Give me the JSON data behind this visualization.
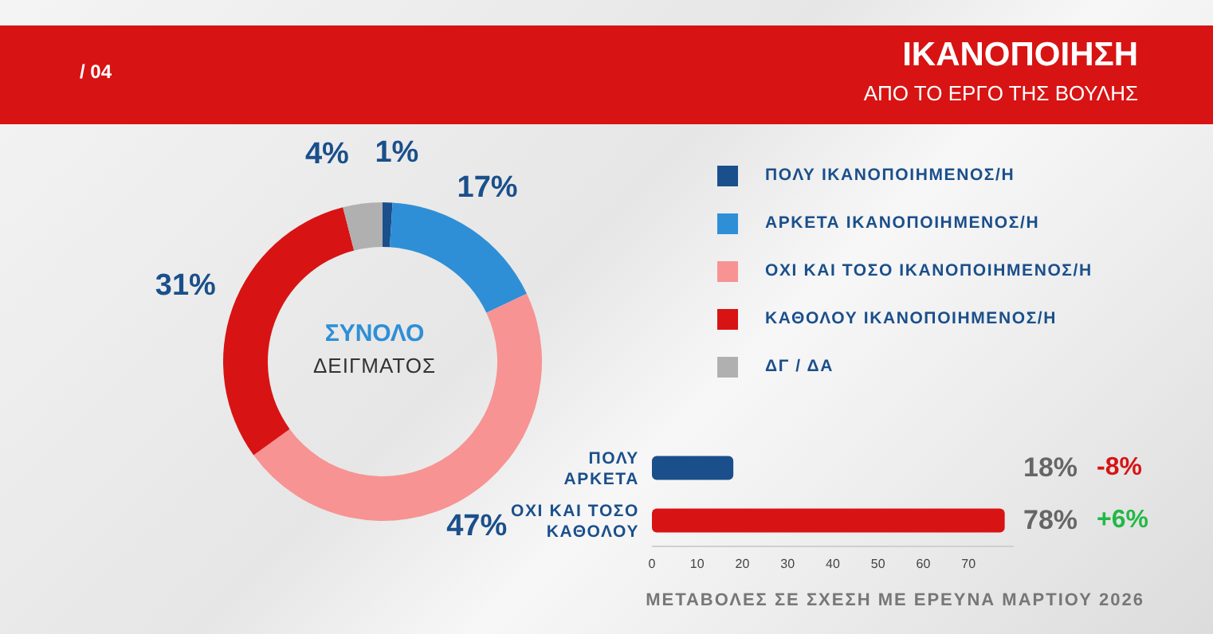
{
  "chart_data": [
    {
      "type": "donut",
      "title": "ΙΚΑΝΟΠΟΙΗΣΗ",
      "subtitle": "ΑΠΟ ΤΟ ΕΡΓΟ ΤΗΣ ΒΟΥΛΗΣ",
      "annotations": [
        "/ 04",
        "ΣΥΝΟΛΟ",
        "ΔΕΙΓΜΑΤΟΣ"
      ],
      "categories": [
        "ΠΟΛΥ ΙΚΑΝΟΠΟΙΗΜΕΝΟΣ/Η",
        "ΑΡΚΕΤΑ ΙΚΑΝΟΠΟΙΗΜΕΝΟΣ/Η",
        "ΟΧΙ ΚΑΙ ΤΟΣΟ ΙΚΑΝΟΠΟΙΗΜΕΝΟΣ/Η",
        "ΚΑΘΟΛΟΥ ΙΚΑΝΟΠΟΙΗΜΕΝΟΣ/Η",
        "ΔΓ / ΔΑ"
      ],
      "values": [
        1,
        17,
        47,
        31,
        4
      ],
      "colors": [
        "#1a4f8b",
        "#2e8fd6",
        "#f79393",
        "#d81313",
        "#b0b0b0"
      ],
      "value_labels": [
        "1%",
        "17%",
        "47%",
        "31%",
        "4%"
      ],
      "legend": "right"
    },
    {
      "type": "bar",
      "orientation": "horizontal",
      "categories": [
        "ΠΟΛΥ\nΑΡΚΕΤΑ",
        "ΟΧΙ ΚΑΙ ΤΟΣΟ\nΚΑΘΟΛΟΥ"
      ],
      "values": [
        18,
        78
      ],
      "colors": [
        "#1a4f8b",
        "#d81313"
      ],
      "value_labels": [
        "18%",
        "78%"
      ],
      "xlim": [
        0,
        80
      ],
      "xticks": [
        0,
        10,
        20,
        30,
        40,
        50,
        60,
        70
      ],
      "annotations": [
        "-8%",
        "+6%",
        "ΜΕΤΑΒΟΛΕΣ ΣΕ ΣΧΕΣΗ ΜΕ ΕΡΕΥΝΑ ΜΑΡΤΙΟΥ 2026"
      ]
    }
  ]
}
